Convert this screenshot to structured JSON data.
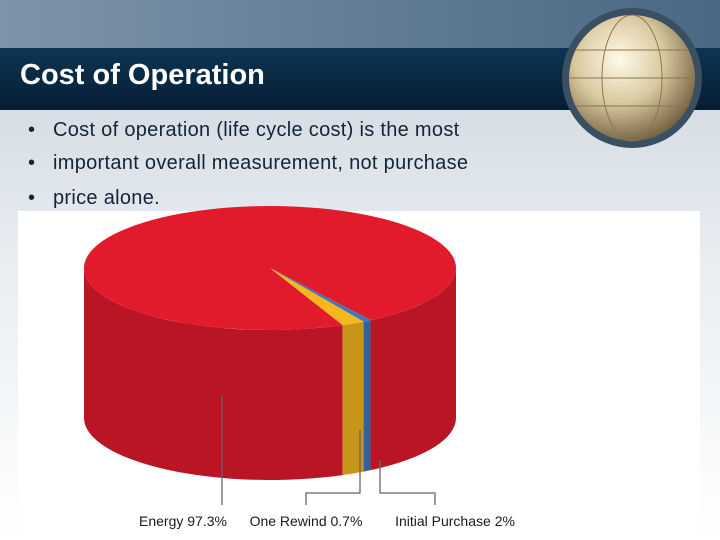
{
  "slide": {
    "title": "Cost of Operation",
    "bullets": [
      "Cost of operation (life cycle cost) is the most",
      "important overall measurement, not purchase",
      "price alone."
    ]
  },
  "chart_data": {
    "type": "pie",
    "categories": [
      "Energy",
      "One Rewind",
      "Initial Purchase"
    ],
    "values": [
      97.3,
      0.7,
      2
    ],
    "value_labels": [
      "97.3%",
      "0.7%",
      "2%"
    ],
    "colors": [
      "#e11a2c",
      "#3b78c0",
      "#f5b61e"
    ]
  }
}
